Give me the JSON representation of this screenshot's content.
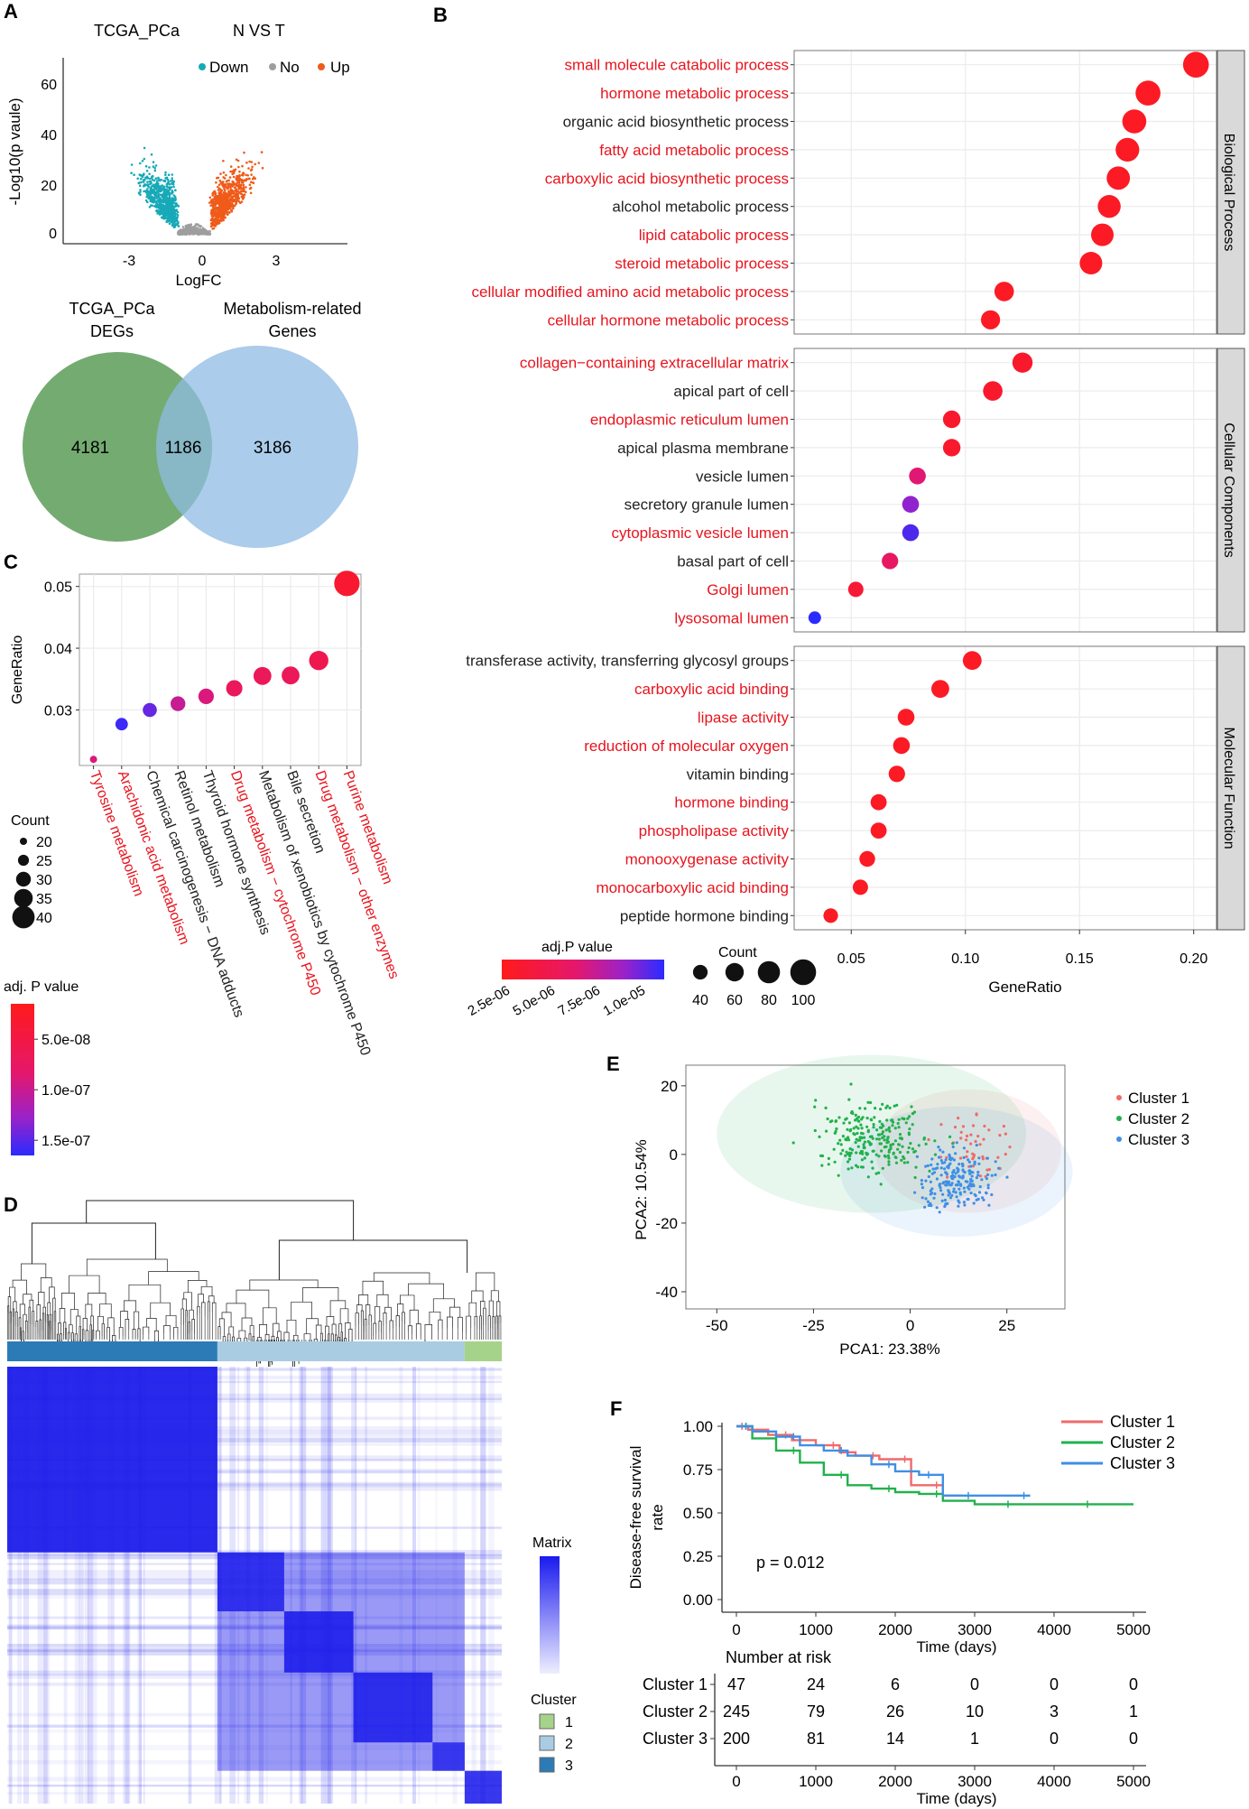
{
  "colors": {
    "down": "#17a9b7",
    "no": "#9e9e9e",
    "up": "#ef5b1a",
    "venn_left": "#5c9c58",
    "venn_right": "#8fbbe3",
    "red_label": "#e8141e",
    "cluster1": "#f06a6a",
    "cluster2": "#22b14c",
    "cluster3": "#3f8fe6"
  },
  "panels": {
    "A": "A",
    "B": "B",
    "C": "C",
    "D": "D",
    "E": "E",
    "F": "F"
  },
  "chart_data": [
    {
      "id": "A-volcano",
      "type": "scatter",
      "title": "TCGA_PCa",
      "subtitle": "N VS T",
      "xlabel": "LogFC",
      "ylabel": "-Log10(p vaule)",
      "xlim": [
        -6,
        7
      ],
      "ylim": [
        -3,
        70
      ],
      "xticks": [
        "-3",
        "0",
        "3"
      ],
      "yticks": [
        "0",
        "20",
        "40",
        "60"
      ],
      "legend": [
        {
          "label": "Down",
          "color": "#17a9b7"
        },
        {
          "label": "No",
          "color": "#9e9e9e"
        },
        {
          "label": "Up",
          "color": "#ef5b1a"
        }
      ]
    },
    {
      "id": "A-venn",
      "type": "venn",
      "sets": [
        {
          "label_line1": "TCGA_PCa",
          "label_line2": "DEGs",
          "only": "4181"
        },
        {
          "label_line1": "Metabolism-related",
          "label_line2": "Genes",
          "only": "3186"
        }
      ],
      "intersection": "1186"
    },
    {
      "id": "B-go-dotplot",
      "type": "scatter",
      "subtype": "dotplot",
      "xlabel": "GeneRatio",
      "xlim": [
        0.025,
        0.21
      ],
      "xticks": [
        "0.05",
        "0.10",
        "0.15",
        "0.20"
      ],
      "facets": [
        {
          "name": "Biological Process",
          "terms": [
            {
              "label": "small molecule catabolic process",
              "ratio": 0.201,
              "count": 100,
              "p": 2.2e-06,
              "red": true
            },
            {
              "label": "hormone metabolic process",
              "ratio": 0.18,
              "count": 95,
              "p": 2.2e-06,
              "red": true
            },
            {
              "label": "organic acid biosynthetic process",
              "ratio": 0.174,
              "count": 90,
              "p": 2.2e-06,
              "red": false
            },
            {
              "label": "fatty acid metabolic process",
              "ratio": 0.171,
              "count": 88,
              "p": 2.2e-06,
              "red": true
            },
            {
              "label": "carboxylic acid biosynthetic process",
              "ratio": 0.167,
              "count": 86,
              "p": 2.2e-06,
              "red": true
            },
            {
              "label": "alcohol metabolic process",
              "ratio": 0.163,
              "count": 84,
              "p": 2.2e-06,
              "red": false
            },
            {
              "label": "lipid catabolic process",
              "ratio": 0.16,
              "count": 82,
              "p": 2.2e-06,
              "red": true
            },
            {
              "label": "steroid metabolic process",
              "ratio": 0.155,
              "count": 82,
              "p": 2.2e-06,
              "red": true
            },
            {
              "label": "cellular modified amino acid metabolic process",
              "ratio": 0.117,
              "count": 66,
              "p": 2.2e-06,
              "red": true
            },
            {
              "label": "cellular hormone metabolic process",
              "ratio": 0.111,
              "count": 64,
              "p": 2.2e-06,
              "red": true
            }
          ]
        },
        {
          "name": "Cellular Components",
          "terms": [
            {
              "label": "collagen−containing extracellular matrix",
              "ratio": 0.125,
              "count": 70,
              "p": 2.4e-06,
              "red": true
            },
            {
              "label": "apical part of cell",
              "ratio": 0.112,
              "count": 66,
              "p": 2.4e-06,
              "red": false
            },
            {
              "label": "endoplasmic reticulum lumen",
              "ratio": 0.094,
              "count": 56,
              "p": 2.4e-06,
              "red": true
            },
            {
              "label": "apical plasma membrane",
              "ratio": 0.094,
              "count": 56,
              "p": 2.4e-06,
              "red": false
            },
            {
              "label": "vesicle lumen",
              "ratio": 0.079,
              "count": 52,
              "p": 4.5e-06,
              "red": false
            },
            {
              "label": "secretory granule lumen",
              "ratio": 0.076,
              "count": 52,
              "p": 7.5e-06,
              "red": false
            },
            {
              "label": "cytoplasmic vesicle lumen",
              "ratio": 0.076,
              "count": 52,
              "p": 9.6e-06,
              "red": true
            },
            {
              "label": "basal part of cell",
              "ratio": 0.067,
              "count": 50,
              "p": 4e-06,
              "red": false
            },
            {
              "label": "Golgi lumen",
              "ratio": 0.052,
              "count": 44,
              "p": 2.6e-06,
              "red": true
            },
            {
              "label": "lysosomal lumen",
              "ratio": 0.034,
              "count": 30,
              "p": 1.1e-05,
              "red": true
            }
          ]
        },
        {
          "name": "Molecular Function",
          "terms": [
            {
              "label": "transferase activity, transferring glycosyl groups",
              "ratio": 0.103,
              "count": 62,
              "p": 2.2e-06,
              "red": false
            },
            {
              "label": "carboxylic acid binding",
              "ratio": 0.089,
              "count": 58,
              "p": 2.2e-06,
              "red": true
            },
            {
              "label": "lipase activity",
              "ratio": 0.074,
              "count": 52,
              "p": 2.2e-06,
              "red": true
            },
            {
              "label": "reduction of molecular oxygen",
              "ratio": 0.072,
              "count": 52,
              "p": 2.2e-06,
              "red": true
            },
            {
              "label": "vitamin binding",
              "ratio": 0.07,
              "count": 50,
              "p": 2.2e-06,
              "red": false
            },
            {
              "label": "hormone binding",
              "ratio": 0.062,
              "count": 48,
              "p": 2.2e-06,
              "red": true
            },
            {
              "label": "phospholipase activity",
              "ratio": 0.062,
              "count": 48,
              "p": 2.2e-06,
              "red": true
            },
            {
              "label": "monooxygenase activity",
              "ratio": 0.057,
              "count": 46,
              "p": 2.2e-06,
              "red": true
            },
            {
              "label": "monocarboxylic acid binding",
              "ratio": 0.054,
              "count": 44,
              "p": 2.2e-06,
              "red": true
            },
            {
              "label": "peptide hormone binding",
              "ratio": 0.041,
              "count": 40,
              "p": 2.2e-06,
              "red": false
            }
          ]
        }
      ],
      "color_legend": {
        "title": "adj.P value",
        "ticks": [
          "2.5e-06",
          "5.0e-06",
          "7.5e-06",
          "1.0e-05"
        ],
        "values": [
          2.5e-06,
          5e-06,
          7.5e-06,
          1e-05
        ],
        "range": [
          2e-06,
          1.1e-05
        ]
      },
      "size_legend": {
        "title": "Count",
        "values": [
          40,
          60,
          80,
          100
        ],
        "labels": [
          "40",
          "60",
          "80",
          "100"
        ]
      }
    },
    {
      "id": "C-kegg-dotplot",
      "type": "scatter",
      "subtype": "dotplot",
      "ylabel": "GeneRatio",
      "ylim": [
        0.021,
        0.052
      ],
      "yticks": [
        {
          "v": 0.03,
          "label": "0.03"
        },
        {
          "v": 0.04,
          "label": "0.04"
        },
        {
          "v": 0.05,
          "label": "0.05"
        }
      ],
      "terms": [
        {
          "label": "Tyrosine metabolism",
          "ratio": 0.022,
          "count": 20,
          "p": 5e-08,
          "red": true
        },
        {
          "label": "Arachidonic acid metabolism",
          "ratio": 0.0277,
          "count": 27,
          "p": 1.5e-07,
          "red": true
        },
        {
          "label": "Chemical carcinogenesis − DNA adducts",
          "ratio": 0.03,
          "count": 29,
          "p": 1.2e-07,
          "red": false
        },
        {
          "label": "Retinol metabolism",
          "ratio": 0.031,
          "count": 30,
          "p": 6e-08,
          "red": false
        },
        {
          "label": "Thyroid hormone synthesis",
          "ratio": 0.0322,
          "count": 31,
          "p": 5e-08,
          "red": false
        },
        {
          "label": "Drug metabolism − cytochrome P450",
          "ratio": 0.0335,
          "count": 32,
          "p": 3.5e-08,
          "red": true
        },
        {
          "label": "Metabolism of xenobiotics by cytochrome P450",
          "ratio": 0.0355,
          "count": 34,
          "p": 3.5e-08,
          "red": false
        },
        {
          "label": "Bile secretion",
          "ratio": 0.0356,
          "count": 34,
          "p": 3.5e-08,
          "red": false
        },
        {
          "label": "Drug metabolism − other enzymes",
          "ratio": 0.038,
          "count": 36,
          "p": 3e-08,
          "red": true
        },
        {
          "label": "Purine metabolism",
          "ratio": 0.0505,
          "count": 44,
          "p": 2e-08,
          "red": true
        }
      ],
      "size_legend": {
        "title": "Count",
        "values": [
          20,
          25,
          30,
          35,
          40
        ],
        "labels": [
          "20",
          "25",
          "30",
          "35",
          "40"
        ]
      },
      "color_legend": {
        "title": "adj. P value",
        "ticks": [
          "5.0e-08",
          "1.0e-07",
          "1.5e-07"
        ],
        "values": [
          5e-08,
          1e-07,
          1.5e-07
        ],
        "range": [
          1.5e-08,
          1.65e-07
        ]
      }
    },
    {
      "id": "D-consensus-heatmap",
      "type": "heatmap",
      "legend_title": "Matrix",
      "cluster_title": "Cluster",
      "clusters": [
        {
          "label": "1",
          "color": "#a5d38a"
        },
        {
          "label": "2",
          "color": "#a9cce3"
        },
        {
          "label": "3",
          "color": "#2c7bb6"
        }
      ],
      "order": [
        {
          "cluster": "3",
          "fraction": 0.425
        },
        {
          "cluster": "2",
          "fraction": 0.5
        },
        {
          "cluster": "1",
          "fraction": 0.075
        }
      ]
    },
    {
      "id": "E-pca",
      "type": "scatter",
      "xlabel": "PCA1: 23.38%",
      "ylabel": "PCA2: 10.54%",
      "xlim": [
        -58,
        40
      ],
      "ylim": [
        -45,
        26
      ],
      "xticks": [
        {
          "v": -50,
          "label": "-50"
        },
        {
          "v": -25,
          "label": "-25"
        },
        {
          "v": 0,
          "label": "0"
        },
        {
          "v": 25,
          "label": "25"
        }
      ],
      "yticks": [
        {
          "v": 20,
          "label": "20"
        },
        {
          "v": 0,
          "label": "0"
        },
        {
          "v": -20,
          "label": "-20"
        },
        {
          "v": -40,
          "label": "-40"
        }
      ],
      "series": [
        {
          "name": "Cluster 1",
          "color": "#f06a6a",
          "n": 47,
          "center": [
            16,
            2
          ],
          "spread": [
            9,
            10
          ],
          "ellipse": [
            15,
            1,
            24,
            18
          ]
        },
        {
          "name": "Cluster 2",
          "color": "#22b14c",
          "n": 245,
          "center": [
            -10,
            5
          ],
          "spread": [
            15,
            11
          ],
          "ellipse": [
            -10,
            6,
            40,
            23
          ]
        },
        {
          "name": "Cluster 3",
          "color": "#3f8fe6",
          "n": 200,
          "center": [
            12,
            -7
          ],
          "spread": [
            10,
            9
          ],
          "ellipse": [
            12,
            -5,
            30,
            19
          ]
        }
      ]
    },
    {
      "id": "F-survival",
      "type": "line",
      "ylabel_line1": "Disease-free survival",
      "ylabel_line2": "rate",
      "xlabel": "Time (days)",
      "xlim": [
        0,
        5000
      ],
      "ylim": [
        0,
        1
      ],
      "xticks": [
        "0",
        "1000",
        "2000",
        "3000",
        "4000",
        "5000"
      ],
      "yticks": [
        "0.00",
        "0.25",
        "0.50",
        "0.75",
        "1.00"
      ],
      "pvalue": "p = 0.012",
      "series": [
        {
          "name": "Cluster 1",
          "color": "#f06a6a",
          "x": [
            0,
            150,
            400,
            700,
            1000,
            1300,
            1500,
            1800,
            2100,
            2200,
            2500,
            2600,
            2850
          ],
          "y": [
            1.0,
            0.98,
            0.95,
            0.92,
            0.89,
            0.85,
            0.83,
            0.81,
            0.81,
            0.66,
            0.66,
            0.6,
            0.6
          ]
        },
        {
          "name": "Cluster 2",
          "color": "#22b14c",
          "x": [
            0,
            200,
            500,
            800,
            1100,
            1400,
            1700,
            2000,
            2300,
            2600,
            3000,
            3500,
            4000,
            4500,
            5000
          ],
          "y": [
            1.0,
            0.93,
            0.86,
            0.79,
            0.72,
            0.66,
            0.64,
            0.62,
            0.61,
            0.57,
            0.55,
            0.55,
            0.55,
            0.55,
            0.55
          ]
        },
        {
          "name": "Cluster 3",
          "color": "#3f8fe6",
          "x": [
            0,
            200,
            500,
            800,
            1100,
            1400,
            1700,
            2000,
            2300,
            2500,
            2600,
            3000,
            3500,
            3700
          ],
          "y": [
            1.0,
            0.97,
            0.94,
            0.89,
            0.86,
            0.83,
            0.78,
            0.74,
            0.72,
            0.72,
            0.6,
            0.6,
            0.6,
            0.6
          ]
        }
      ],
      "risk_table": {
        "title": "Number at risk",
        "xlabel": "Time (days)",
        "times": [
          "0",
          "1000",
          "2000",
          "3000",
          "4000",
          "5000"
        ],
        "rows": [
          {
            "name": "Cluster 1",
            "values": [
              "47",
              "24",
              "6",
              "0",
              "0",
              "0"
            ]
          },
          {
            "name": "Cluster 2",
            "values": [
              "245",
              "79",
              "26",
              "10",
              "3",
              "1"
            ]
          },
          {
            "name": "Cluster 3",
            "values": [
              "200",
              "81",
              "14",
              "1",
              "0",
              "0"
            ]
          }
        ]
      }
    }
  ]
}
